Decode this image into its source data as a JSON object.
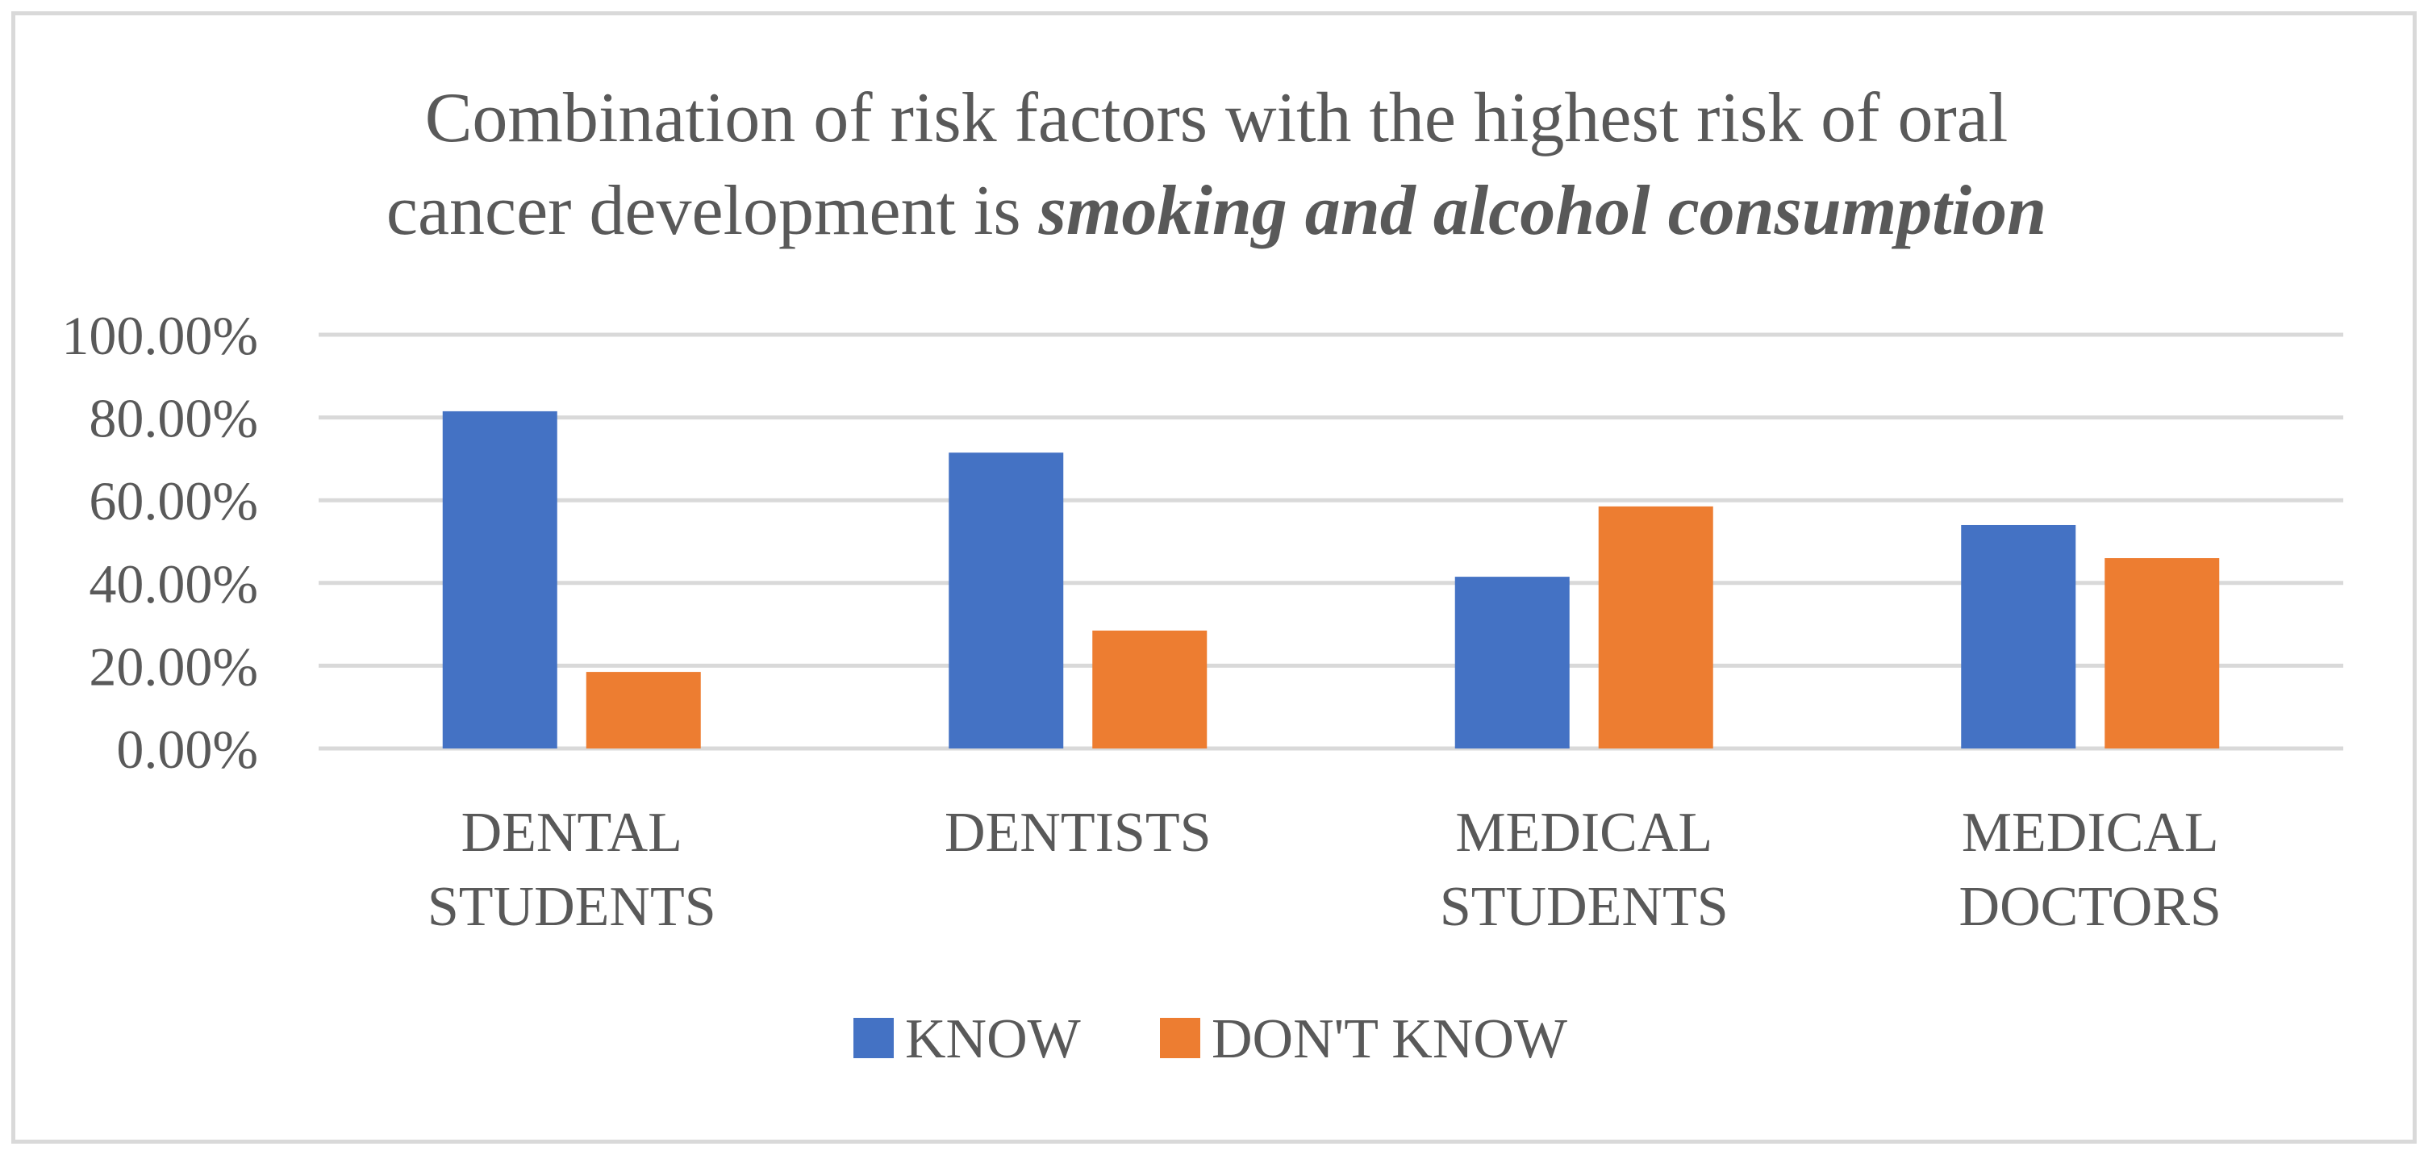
{
  "chart_data": {
    "type": "bar",
    "title": {
      "line1": "Combination of risk factors with the highest risk of oral",
      "line2_plain": "cancer development is ",
      "line2_emphasis": "smoking and alcohol consumption"
    },
    "categories": [
      [
        "DENTAL",
        "STUDENTS"
      ],
      [
        "DENTISTS"
      ],
      [
        "MEDICAL",
        "STUDENTS"
      ],
      [
        "MEDICAL",
        "DOCTORS"
      ]
    ],
    "series": [
      {
        "name": "KNOW",
        "color": "#4472c4",
        "values": [
          81.5,
          71.5,
          41.5,
          54.0
        ]
      },
      {
        "name": "DON'T KNOW",
        "color": "#ed7d31",
        "values": [
          18.5,
          28.5,
          58.5,
          46.0
        ]
      }
    ],
    "ylim": [
      0,
      100
    ],
    "yticks": [
      0,
      20,
      40,
      60,
      80,
      100
    ],
    "ytick_labels": [
      "0.00%",
      "20.00%",
      "40.00%",
      "60.00%",
      "80.00%",
      "100.00%"
    ],
    "grid": true,
    "gridline_color": "#d9d9d9",
    "legend_position": "bottom",
    "xlabel": "",
    "ylabel": ""
  }
}
